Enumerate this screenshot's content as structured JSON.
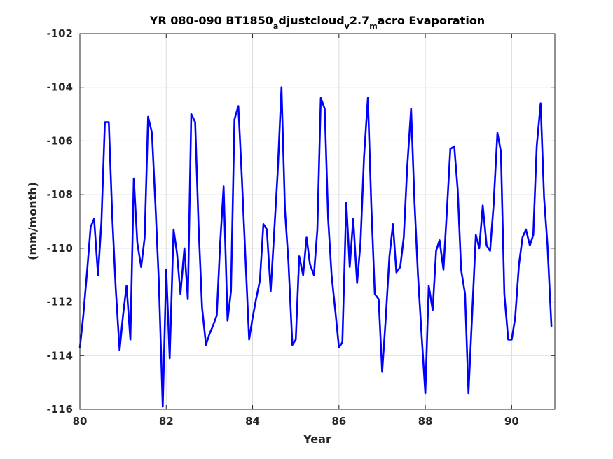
{
  "chart_data": {
    "type": "line",
    "title_parts": [
      {
        "text": "YR 080-090 BT1850",
        "sub": false
      },
      {
        "text": "a",
        "sub": true
      },
      {
        "text": "djustcloud",
        "sub": false
      },
      {
        "text": "v",
        "sub": true
      },
      {
        "text": "2.7",
        "sub": false
      },
      {
        "text": "m",
        "sub": true
      },
      {
        "text": "acro Evaporation",
        "sub": false
      }
    ],
    "xlabel": "Year",
    "ylabel": "(mm/month)",
    "xlim": [
      80,
      91
    ],
    "ylim": [
      -116,
      -102
    ],
    "xticks": [
      "80",
      "82",
      "84",
      "86",
      "88",
      "90"
    ],
    "yticks": [
      "-102",
      "-104",
      "-106",
      "-108",
      "-110",
      "-112",
      "-114",
      "-116"
    ],
    "grid": true,
    "line_color": "#0000ff",
    "series": [
      {
        "x": [
          80.0,
          80.08,
          80.17,
          80.25,
          80.33,
          80.42,
          80.5,
          80.58,
          80.67,
          80.75,
          80.83,
          80.92,
          81.0,
          81.08,
          81.17,
          81.25,
          81.33,
          81.42,
          81.5,
          81.58,
          81.67,
          81.75,
          81.83,
          81.92,
          82.0,
          82.08,
          82.17,
          82.25,
          82.33,
          82.42,
          82.5,
          82.58,
          82.67,
          82.75,
          82.83,
          82.92,
          83.0,
          83.08,
          83.17,
          83.25,
          83.33,
          83.42,
          83.5,
          83.58,
          83.67,
          83.75,
          83.83,
          83.92,
          84.0,
          84.08,
          84.17,
          84.25,
          84.33,
          84.42,
          84.5,
          84.58,
          84.67,
          84.75,
          84.83,
          84.92,
          85.0,
          85.08,
          85.17,
          85.25,
          85.33,
          85.42,
          85.5,
          85.58,
          85.67,
          85.75,
          85.83,
          85.92,
          86.0,
          86.08,
          86.17,
          86.25,
          86.33,
          86.42,
          86.5,
          86.58,
          86.67,
          86.75,
          86.83,
          86.92,
          87.0,
          87.08,
          87.17,
          87.25,
          87.33,
          87.42,
          87.5,
          87.58,
          87.67,
          87.75,
          87.83,
          87.92,
          88.0,
          88.08,
          88.17,
          88.25,
          88.33,
          88.42,
          88.5,
          88.58,
          88.67,
          88.75,
          88.83,
          88.92,
          89.0,
          89.08,
          89.17,
          89.25,
          89.33,
          89.42,
          89.5,
          89.58,
          89.67,
          89.75,
          89.83,
          89.92,
          90.0,
          90.08,
          90.17,
          90.25,
          90.33,
          90.42,
          90.5,
          90.58,
          90.67,
          90.75,
          90.83,
          90.92
        ],
        "y": [
          -113.7,
          -112.5,
          -110.8,
          -109.2,
          -108.9,
          -111.0,
          -109.0,
          -105.3,
          -105.3,
          -108.8,
          -111.5,
          -113.8,
          -112.5,
          -111.4,
          -113.4,
          -107.4,
          -109.8,
          -110.7,
          -109.6,
          -105.1,
          -105.7,
          -108.4,
          -111.3,
          -115.9,
          -110.8,
          -114.1,
          -109.3,
          -110.2,
          -111.7,
          -110.0,
          -111.9,
          -105.0,
          -105.3,
          -109.2,
          -112.2,
          -113.6,
          -113.2,
          -112.9,
          -112.5,
          -109.8,
          -107.7,
          -112.7,
          -111.6,
          -105.2,
          -104.7,
          -107.3,
          -110.2,
          -113.4,
          -112.6,
          -111.9,
          -111.2,
          -109.1,
          -109.3,
          -111.6,
          -109.4,
          -107.2,
          -104.0,
          -108.6,
          -110.5,
          -113.6,
          -113.4,
          -110.3,
          -111.0,
          -109.6,
          -110.6,
          -111.0,
          -109.3,
          -104.4,
          -104.8,
          -108.9,
          -111.0,
          -112.4,
          -113.7,
          -113.5,
          -108.3,
          -110.7,
          -108.9,
          -111.3,
          -109.8,
          -106.6,
          -104.4,
          -108.4,
          -111.7,
          -111.9,
          -114.6,
          -112.7,
          -110.3,
          -109.1,
          -110.9,
          -110.7,
          -109.6,
          -107.0,
          -104.8,
          -108.3,
          -111.0,
          -113.4,
          -115.4,
          -111.4,
          -112.3,
          -110.1,
          -109.7,
          -110.8,
          -108.6,
          -106.3,
          -106.2,
          -107.8,
          -110.8,
          -111.7,
          -115.4,
          -112.6,
          -109.5,
          -110.0,
          -108.4,
          -109.9,
          -110.1,
          -108.4,
          -105.7,
          -106.4,
          -111.7,
          -113.4,
          -113.4,
          -112.6,
          -110.6,
          -109.6,
          -109.3,
          -109.9,
          -109.5,
          -106.2,
          -104.6,
          -108.1,
          -109.9,
          -112.9
        ]
      }
    ]
  }
}
